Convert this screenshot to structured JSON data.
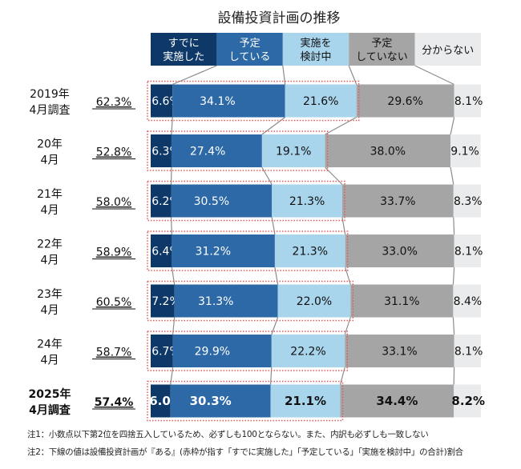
{
  "chart_data": {
    "type": "bar",
    "orientation": "horizontal",
    "stacked": "100%",
    "title": "設備投資計画の推移",
    "categories": [
      [
        "2019年",
        "4月調査"
      ],
      [
        "20年",
        "4月"
      ],
      [
        "21年",
        "4月"
      ],
      [
        "22年",
        "4月"
      ],
      [
        "23年",
        "4月"
      ],
      [
        "24年",
        "4月"
      ],
      [
        "2025年",
        "4月調査"
      ]
    ],
    "highlight_category_index": 6,
    "totals_underlined": [
      "62.3%",
      "52.8%",
      "58.0%",
      "58.9%",
      "60.5%",
      "58.7%",
      "57.4%"
    ],
    "series": [
      {
        "name": [
          "すでに",
          "実施した"
        ],
        "color": "#0d3868",
        "text_color": "#ffffff",
        "values": [
          6.6,
          6.3,
          6.2,
          6.4,
          7.2,
          6.7,
          6.0
        ]
      },
      {
        "name": [
          "予定",
          "している"
        ],
        "color": "#2c69a6",
        "text_color": "#ffffff",
        "values": [
          34.1,
          27.4,
          30.5,
          31.2,
          31.3,
          29.9,
          30.3
        ]
      },
      {
        "name": [
          "実施を",
          "検討中"
        ],
        "color": "#a8d4ec",
        "text_color": "#111111",
        "values": [
          21.6,
          19.1,
          21.3,
          21.3,
          22.0,
          22.2,
          21.1
        ]
      },
      {
        "name": [
          "予定",
          "していない"
        ],
        "color": "#a5a5a5",
        "text_color": "#111111",
        "values": [
          29.6,
          38.0,
          33.7,
          33.0,
          31.1,
          33.1,
          34.4
        ]
      },
      {
        "name": [
          "分からない"
        ],
        "color": "#e9ebed",
        "text_color": "#111111",
        "values": [
          8.1,
          9.1,
          8.3,
          8.1,
          8.4,
          8.1,
          8.2
        ]
      }
    ],
    "value_unit": "%",
    "highlight_box_color": "#e05a5a",
    "connector_color": "#8c8c8c",
    "legend": "top"
  },
  "notes": [
    "注1：小数点以下第2位を四捨五入しているため、必ずしも100とならない。また、内訳も必ずしも一致しない",
    "注2：下線の値は設備投資計画が『ある』(赤枠が指す「すでに実施した」「予定している」「実施を検討中」の合計)割合"
  ]
}
